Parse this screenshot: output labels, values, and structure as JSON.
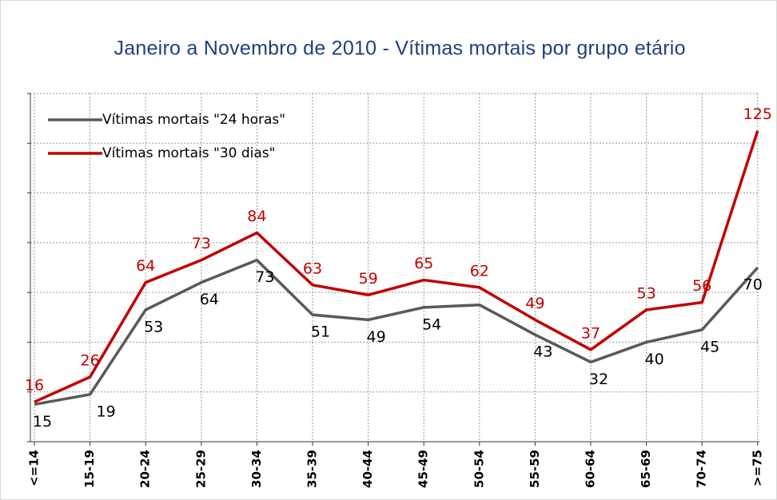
{
  "chart_data": {
    "type": "line",
    "title": "Janeiro a Novembro de 2010 - Vítimas mortais por grupo etário",
    "categories": [
      "<=14",
      "15-19",
      "20-24",
      "25-29",
      "30-34",
      "35-39",
      "40-44",
      "45-49",
      "50-54",
      "55-59",
      "60-64",
      "65-69",
      "70-74",
      ">=75"
    ],
    "series": [
      {
        "name": "Vítimas mortais \"24 horas\"",
        "color": "#595959",
        "label_color": "#000000",
        "values": [
          15,
          19,
          53,
          64,
          73,
          51,
          49,
          54,
          55,
          43,
          32,
          40,
          45,
          70
        ],
        "value_labels": [
          "15",
          "19",
          "53",
          "64",
          "73",
          "51",
          "49",
          "54",
          null,
          "43",
          "32",
          "40",
          "45",
          "70"
        ]
      },
      {
        "name": "Vítimas mortais \"30 dias\"",
        "color": "#c00000",
        "label_color": "#c00000",
        "values": [
          16,
          26,
          64,
          73,
          84,
          63,
          59,
          65,
          62,
          49,
          37,
          53,
          56,
          125
        ]
      }
    ],
    "ylim": [
      0,
      140
    ],
    "yticks": [
      0,
      20,
      40,
      60,
      80,
      100,
      120,
      140
    ],
    "grid": true,
    "legend": "top-left"
  }
}
